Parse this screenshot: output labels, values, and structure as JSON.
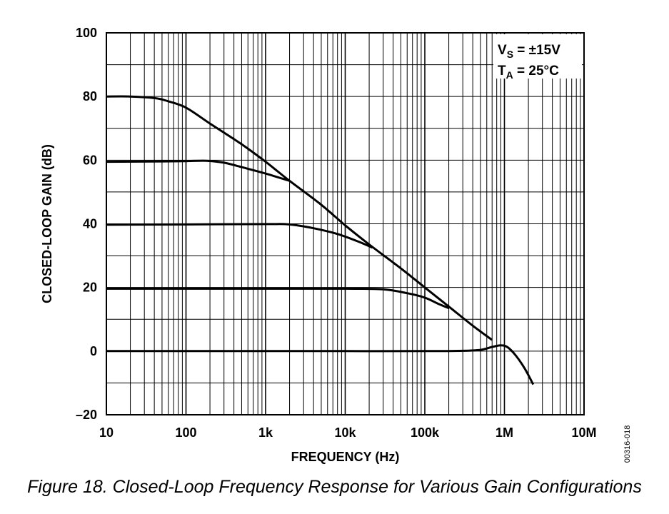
{
  "chart_data": {
    "type": "line",
    "x_scale": "log",
    "xlim": [
      10,
      10000000
    ],
    "ylim": [
      -20,
      100
    ],
    "grid": true,
    "xlabel": "FREQUENCY (Hz)",
    "ylabel": "CLOSED-LOOP GAIN (dB)",
    "x_tick_values": [
      10,
      100,
      1000,
      10000,
      100000,
      1000000,
      10000000
    ],
    "x_tick_labels": [
      "10",
      "100",
      "1k",
      "10k",
      "100k",
      "1M",
      "10M"
    ],
    "y_tick_values": [
      -20,
      0,
      20,
      40,
      60,
      80,
      100
    ],
    "y_tick_labels": [
      "–20",
      "0",
      "20",
      "40",
      "60",
      "80",
      "100"
    ],
    "annotations": [
      {
        "main": "V",
        "sub": "S",
        "rest": " = ±15V"
      },
      {
        "main": "T",
        "sub": "A",
        "rest": " = 25°C"
      }
    ],
    "figure_number": "00316-018",
    "series": [
      {
        "x": [
          10,
          20,
          40,
          60,
          100,
          200,
          500,
          1000,
          2000,
          5000,
          10000,
          20000,
          50000,
          100000,
          200000,
          400000,
          700000
        ],
        "y": [
          80,
          80,
          79.5,
          78.5,
          76.5,
          71.5,
          65,
          59.5,
          53.5,
          46,
          39.5,
          33.5,
          26,
          20,
          14,
          8,
          3.5
        ]
      },
      {
        "x": [
          10,
          50,
          100,
          180,
          300,
          500,
          1000,
          2000
        ],
        "y": [
          59.5,
          59.6,
          59.7,
          59.8,
          59.2,
          57.8,
          55.8,
          53.5
        ]
      },
      {
        "x": [
          10,
          100,
          1000,
          2000,
          4000,
          8000,
          15000,
          22000
        ],
        "y": [
          39.7,
          39.8,
          39.9,
          39.8,
          38.6,
          36.8,
          34.3,
          32.5
        ]
      },
      {
        "x": [
          10,
          1000,
          10000,
          30000,
          60000,
          100000,
          150000,
          200000
        ],
        "y": [
          19.6,
          19.6,
          19.6,
          19.4,
          18.2,
          16.8,
          14.8,
          13.5
        ]
      },
      {
        "x": [
          10,
          100,
          1000,
          10000,
          100000,
          300000,
          500000,
          700000,
          900000,
          1100000,
          1400000,
          1800000,
          2300000
        ],
        "y": [
          0,
          0,
          0,
          0,
          0,
          0.1,
          0.4,
          1.3,
          1.8,
          1.2,
          -1.5,
          -5.5,
          -10.5
        ]
      }
    ]
  },
  "caption": "Figure 18. Closed-Loop Frequency Response for Various Gain Configurations"
}
